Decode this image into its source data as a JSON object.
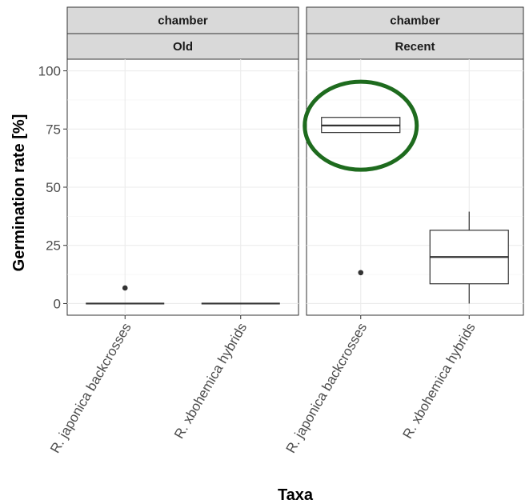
{
  "chart_data": {
    "type": "box",
    "xlabel": "Taxa",
    "ylabel": "Germination rate [%]",
    "ylim": [
      -5,
      105
    ],
    "yticks": [
      0,
      25,
      50,
      75,
      100
    ],
    "categories": [
      "R. japonica backcrosses",
      "R. xbohemica hybrids"
    ],
    "facet_label": "chamber",
    "panels": [
      {
        "name": "Old",
        "boxes": [
          {
            "category": "R. japonica backcrosses",
            "q1": 0,
            "median": 0,
            "q3": 0,
            "whisker_low": 0,
            "whisker_high": 0,
            "outliers": [
              6.7
            ]
          },
          {
            "category": "R. xbohemica hybrids",
            "q1": 0,
            "median": 0,
            "q3": 0,
            "whisker_low": 0,
            "whisker_high": 0,
            "outliers": []
          }
        ]
      },
      {
        "name": "Recent",
        "boxes": [
          {
            "category": "R. japonica backcrosses",
            "q1": 73.5,
            "median": 76.5,
            "q3": 80,
            "whisker_low": 73.5,
            "whisker_high": 80,
            "outliers": [
              13.3
            ],
            "highlighted": true
          },
          {
            "category": "R. xbohemica hybrids",
            "q1": 8.5,
            "median": 20,
            "q3": 31.5,
            "whisker_low": 0,
            "whisker_high": 39.5,
            "outliers": []
          }
        ]
      }
    ],
    "grid": true,
    "highlight_color": "#1e6b1e"
  }
}
